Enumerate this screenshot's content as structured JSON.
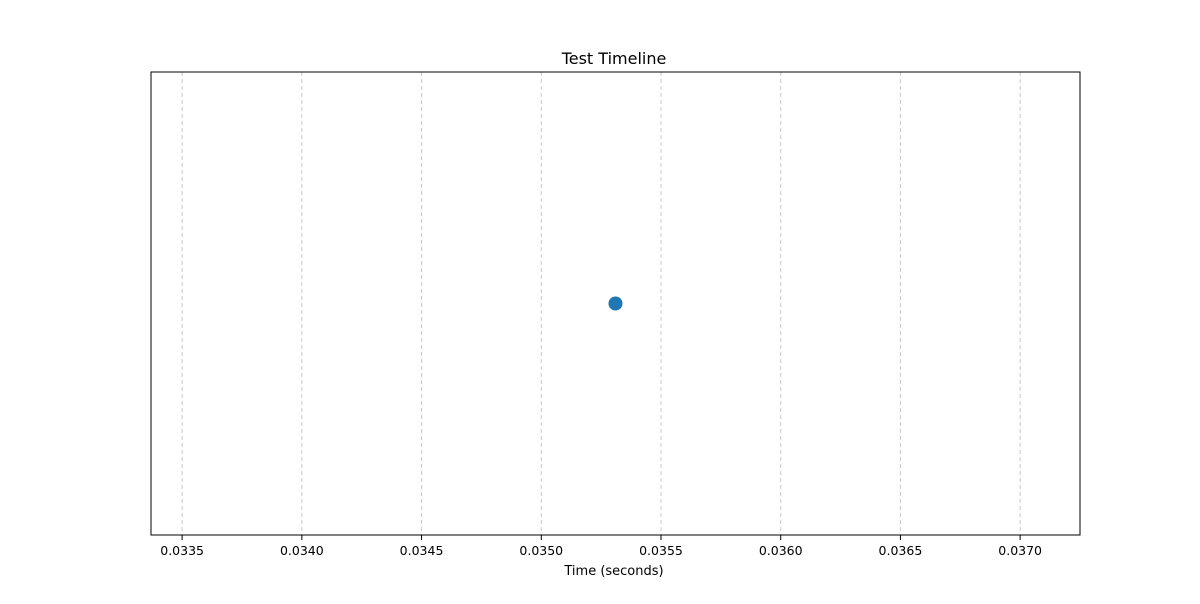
{
  "chart_data": {
    "type": "scatter",
    "title": "Test Timeline",
    "xlabel": "Time (seconds)",
    "ylabel": "",
    "xlim": [
      0.03337,
      0.03725
    ],
    "ylim": [
      0,
      1
    ],
    "x_ticks": [
      0.0335,
      0.034,
      0.0345,
      0.035,
      0.0355,
      0.036,
      0.0365,
      0.037
    ],
    "x_tick_labels": [
      "0.0335",
      "0.0340",
      "0.0345",
      "0.0350",
      "0.0355",
      "0.0360",
      "0.0365",
      "0.0370"
    ],
    "y_ticks_visible": false,
    "grid": {
      "x": true,
      "y": false,
      "style": "dashed"
    },
    "series": [
      {
        "color": "#1f77b4",
        "points": [
          {
            "x": 0.03531,
            "y": 0.5
          }
        ]
      }
    ]
  }
}
